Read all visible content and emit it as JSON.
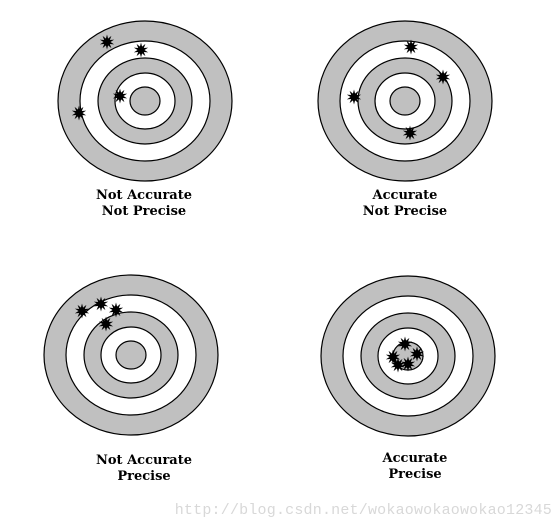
{
  "colors": {
    "ring_gray": "#c0c0c0",
    "ring_white": "#ffffff",
    "stroke": "#000000",
    "shot": "#000000",
    "watermark": "#d8d8d8"
  },
  "icons": {
    "shot": "starburst-shot-icon"
  },
  "targets": [
    {
      "id": "not-accurate-not-precise",
      "label_line1": "Not Accurate",
      "label_line2": "Not Precise"
    },
    {
      "id": "accurate-not-precise",
      "label_line1": "Accurate",
      "label_line2": "Not Precise"
    },
    {
      "id": "not-accurate-precise",
      "label_line1": "Not Accurate",
      "label_line2": "Precise"
    },
    {
      "id": "accurate-precise",
      "label_line1": "Accurate",
      "label_line2": "Precise"
    }
  ],
  "watermark": "http://blog.csdn.net/wokaowokaowokao12345"
}
